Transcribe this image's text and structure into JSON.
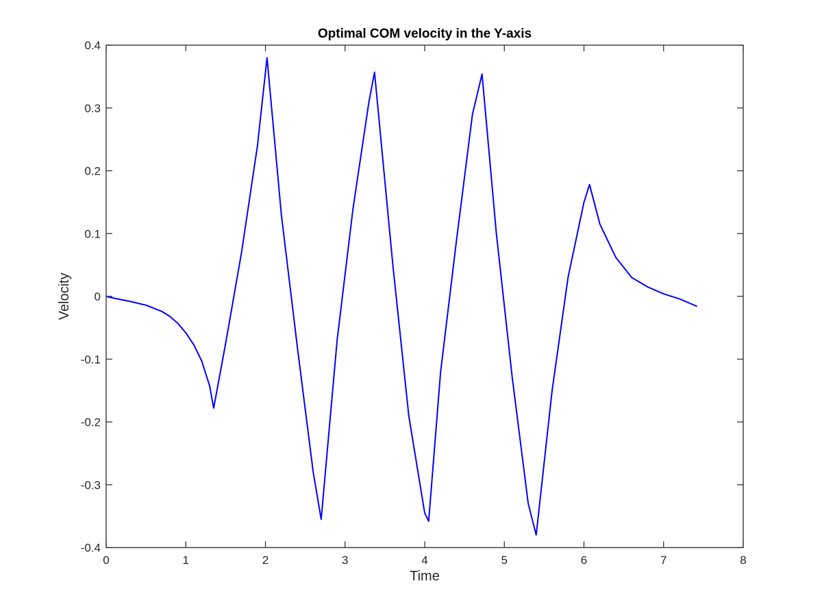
{
  "chart_data": {
    "type": "line",
    "title": "Optimal COM velocity in the Y-axis",
    "xlabel": "Time",
    "ylabel": "Velocity",
    "xlim": [
      0,
      8
    ],
    "ylim": [
      -0.4,
      0.4
    ],
    "xticks": [
      0,
      1,
      2,
      3,
      4,
      5,
      6,
      7,
      8
    ],
    "xtick_labels": [
      "0",
      "1",
      "2",
      "3",
      "4",
      "5",
      "6",
      "7",
      "8"
    ],
    "yticks": [
      0.4,
      0.3,
      0.2,
      0.1,
      0,
      -0.1,
      -0.2,
      -0.3,
      -0.4
    ],
    "ytick_labels": [
      "0.4",
      "0.3",
      "0.2",
      "0.1",
      "0",
      "-0.1",
      "-0.2",
      "-0.3",
      "-0.4"
    ],
    "grid": false,
    "series": [
      {
        "color": "#0000ff",
        "x": [
          0,
          0.05,
          0.1,
          0.3,
          0.5,
          0.7,
          0.8,
          0.9,
          1.0,
          1.1,
          1.2,
          1.3,
          1.35,
          1.5,
          1.7,
          1.9,
          2.02,
          2.2,
          2.4,
          2.6,
          2.7,
          2.9,
          3.1,
          3.3,
          3.37,
          3.6,
          3.8,
          4.0,
          4.05,
          4.2,
          4.4,
          4.6,
          4.72,
          4.9,
          5.1,
          5.3,
          5.4,
          5.6,
          5.8,
          6.0,
          6.07,
          6.2,
          6.4,
          6.6,
          6.8,
          7.0,
          7.2,
          7.42
        ],
        "values": [
          0.0,
          -0.0015,
          -0.003,
          -0.008,
          -0.014,
          -0.024,
          -0.032,
          -0.043,
          -0.058,
          -0.077,
          -0.103,
          -0.143,
          -0.178,
          -0.075,
          0.07,
          0.24,
          0.38,
          0.13,
          -0.08,
          -0.28,
          -0.355,
          -0.07,
          0.14,
          0.31,
          0.357,
          0.05,
          -0.19,
          -0.345,
          -0.358,
          -0.12,
          0.09,
          0.29,
          0.354,
          0.1,
          -0.13,
          -0.33,
          -0.38,
          -0.15,
          0.03,
          0.15,
          0.178,
          0.115,
          0.062,
          0.03,
          0.015,
          0.004,
          -0.004,
          -0.016
        ]
      }
    ]
  }
}
